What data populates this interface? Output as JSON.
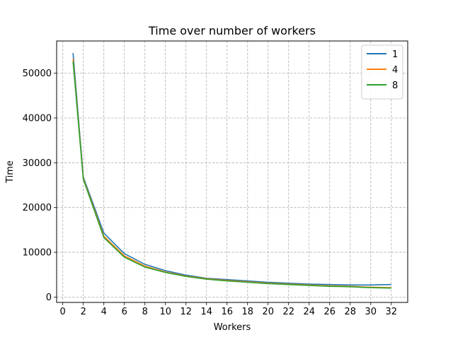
{
  "chart_data": {
    "type": "line",
    "title": "Time over number of workers",
    "xlabel": "Workers",
    "ylabel": "Time",
    "xlim": [
      -0.6,
      33.6
    ],
    "ylim": [
      -1200,
      57200
    ],
    "xticks": [
      0,
      2,
      4,
      6,
      8,
      10,
      12,
      14,
      16,
      18,
      20,
      22,
      24,
      26,
      28,
      30,
      32
    ],
    "yticks": [
      0,
      10000,
      20000,
      30000,
      40000,
      50000
    ],
    "grid": true,
    "grid_style": "dashed",
    "legend_position": "upper right",
    "x": [
      1,
      2,
      4,
      6,
      8,
      10,
      12,
      14,
      16,
      18,
      20,
      22,
      24,
      26,
      28,
      30,
      32
    ],
    "series": [
      {
        "name": "1",
        "color": "#1f77b4",
        "values": [
          54500,
          26800,
          14300,
          9700,
          7300,
          5900,
          4900,
          4200,
          3900,
          3600,
          3300,
          3100,
          2900,
          2800,
          2700,
          2700,
          2800
        ]
      },
      {
        "name": "4",
        "color": "#ff7f0e",
        "values": [
          53200,
          26500,
          13600,
          9200,
          6900,
          5600,
          4700,
          4100,
          3700,
          3400,
          3100,
          2900,
          2700,
          2500,
          2400,
          2200,
          2100
        ]
      },
      {
        "name": "8",
        "color": "#2ca02c",
        "values": [
          52600,
          26300,
          13300,
          8900,
          6700,
          5500,
          4600,
          4000,
          3600,
          3300,
          3000,
          2800,
          2600,
          2400,
          2300,
          2100,
          2000
        ]
      }
    ]
  }
}
